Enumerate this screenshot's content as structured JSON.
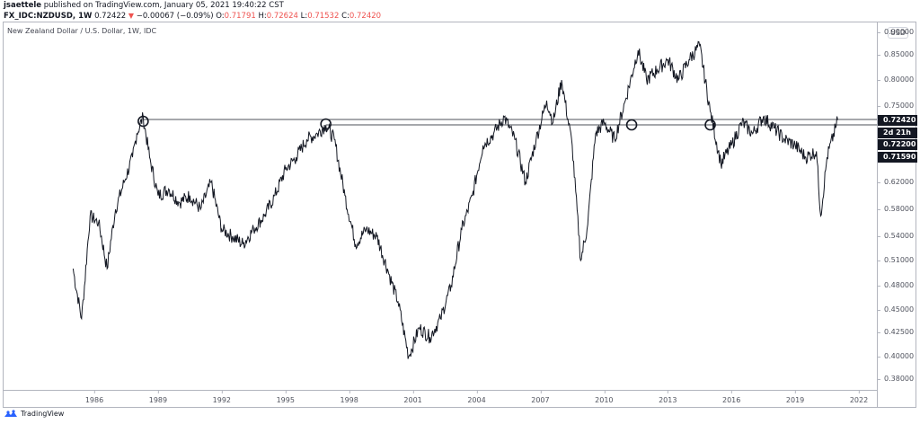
{
  "header": {
    "author": "jsaettele",
    "published_text": "published on TradingView.com, January 05, 2021 19:40:22 CST",
    "symbol": "FX_IDC:NZDUSD, 1W",
    "last": "0.72422",
    "change": "−0.00067 (−0.09%)",
    "o_label": "O:",
    "o": "0.71791",
    "h_label": "H:",
    "h": "0.72624",
    "l_label": "L:",
    "l": "0.71532",
    "c_label": "C:",
    "c": "0.72420"
  },
  "legend": "New Zealand Dollar / U.S. Dollar, 1W, IDC",
  "currency_badge": "USD",
  "branding": "TradingView",
  "colors": {
    "price": "#131722",
    "down": "#ef5350",
    "axis": "#b2b5be",
    "brand": "#2962ff"
  },
  "chart_data": {
    "type": "line",
    "title": "New Zealand Dollar / U.S. Dollar, 1W, IDC",
    "xlabel": "",
    "ylabel": "USD",
    "x_ticks": [
      "1986",
      "1989",
      "1992",
      "1995",
      "1998",
      "2001",
      "2004",
      "2007",
      "2010",
      "2013",
      "2016",
      "2019",
      "2022"
    ],
    "y_ticks": [
      "0.90000",
      "0.85000",
      "0.80000",
      "0.75000",
      "0.62000",
      "0.58000",
      "0.54000",
      "0.51000",
      "0.48000",
      "0.45000",
      "0.42500",
      "0.40000",
      "0.38000"
    ],
    "price_badges": [
      "0.72420",
      "2d 21h",
      "0.72200",
      "0.71590"
    ],
    "ylim": [
      0.38,
      0.9
    ],
    "grid": false,
    "horizontal_lines": [
      0.7242,
      0.7159
    ],
    "circle_annotations": [
      {
        "x": 1988.3,
        "y": 0.724
      },
      {
        "x": 1996.9,
        "y": 0.716
      },
      {
        "x": 2011.3,
        "y": 0.716
      },
      {
        "x": 2015.0,
        "y": 0.716
      }
    ],
    "series": [
      {
        "name": "NZDUSD weekly close (approx.)",
        "x": [
          1985.0,
          1985.4,
          1985.8,
          1986.2,
          1986.6,
          1987.0,
          1987.4,
          1987.8,
          1988.0,
          1988.3,
          1988.6,
          1989.0,
          1989.5,
          1990.0,
          1990.5,
          1991.0,
          1991.5,
          1992.0,
          1992.5,
          1993.0,
          1993.5,
          1994.0,
          1994.5,
          1995.0,
          1995.5,
          1996.0,
          1996.5,
          1996.9,
          1997.3,
          1997.8,
          1998.3,
          1998.8,
          1999.3,
          1999.8,
          2000.3,
          2000.8,
          2001.3,
          2001.8,
          2002.3,
          2002.8,
          2003.3,
          2003.8,
          2004.3,
          2004.8,
          2005.3,
          2005.8,
          2006.3,
          2006.8,
          2007.3,
          2007.6,
          2008.0,
          2008.5,
          2008.9,
          2009.2,
          2009.6,
          2010.0,
          2010.5,
          2011.0,
          2011.6,
          2012.0,
          2012.5,
          2013.0,
          2013.5,
          2014.0,
          2014.5,
          2015.0,
          2015.5,
          2016.0,
          2016.5,
          2017.0,
          2017.5,
          2018.0,
          2018.5,
          2019.0,
          2019.5,
          2020.0,
          2020.2,
          2020.5,
          2020.9,
          2021.0
        ],
        "values": [
          0.5,
          0.44,
          0.57,
          0.56,
          0.5,
          0.58,
          0.62,
          0.66,
          0.7,
          0.73,
          0.66,
          0.6,
          0.61,
          0.59,
          0.6,
          0.58,
          0.62,
          0.55,
          0.54,
          0.53,
          0.55,
          0.57,
          0.6,
          0.64,
          0.66,
          0.69,
          0.7,
          0.715,
          0.69,
          0.6,
          0.53,
          0.55,
          0.54,
          0.5,
          0.46,
          0.4,
          0.43,
          0.42,
          0.44,
          0.48,
          0.55,
          0.6,
          0.68,
          0.7,
          0.73,
          0.69,
          0.62,
          0.69,
          0.76,
          0.72,
          0.8,
          0.68,
          0.51,
          0.55,
          0.7,
          0.72,
          0.69,
          0.76,
          0.86,
          0.8,
          0.82,
          0.84,
          0.8,
          0.84,
          0.87,
          0.74,
          0.65,
          0.68,
          0.72,
          0.7,
          0.73,
          0.71,
          0.69,
          0.68,
          0.66,
          0.67,
          0.57,
          0.66,
          0.71,
          0.7242
        ]
      }
    ]
  }
}
